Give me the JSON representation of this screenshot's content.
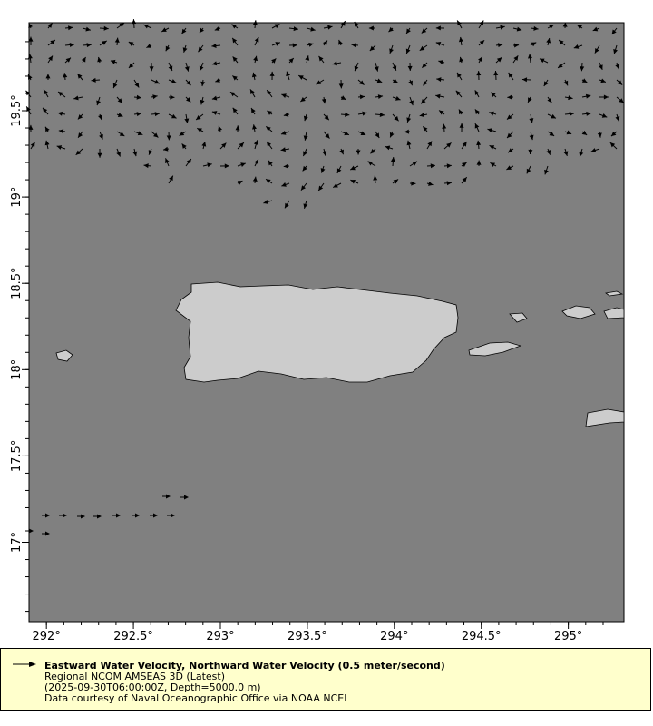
{
  "map": {
    "lon_ticks": [
      "292°",
      "292.5°",
      "293°",
      "293.5°",
      "294°",
      "294.5°",
      "295°"
    ],
    "lat_ticks": [
      "19.5°",
      "19°",
      "18.5°",
      "18°",
      "17.5°",
      "17°"
    ],
    "lon_range": [
      291.9,
      295.32
    ],
    "lat_range": [
      16.54,
      20.01
    ],
    "ocean_color": "#808080",
    "land_color": "#cccccc",
    "vector_color": "#000000"
  },
  "legend": {
    "title": "Eastward Water Velocity, Northward Water Velocity (0.5 meter/second)",
    "line1": "Regional NCOM AMSEAS 3D (Latest)",
    "line2": "(2025-09-30T06:00:00Z, Depth=5000.0 m)",
    "line3": "Data courtesy of Naval Oceanographic Office via NOAA NCEI",
    "background": "#ffffcc"
  }
}
